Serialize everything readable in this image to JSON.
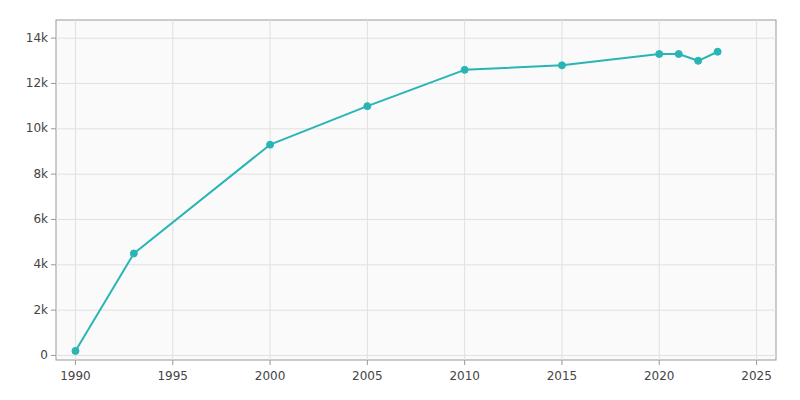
{
  "chart_data": {
    "type": "line",
    "x": [
      1990,
      1993,
      2000,
      2005,
      2010,
      2015,
      2020,
      2021,
      2022,
      2023
    ],
    "values": [
      200,
      4500,
      9300,
      11000,
      12600,
      12800,
      13300,
      13300,
      13000,
      13400
    ],
    "color": "#29b5b5",
    "marker": "circle",
    "xlim": [
      1989,
      2026
    ],
    "ylim": [
      -200,
      14800
    ],
    "xticks": [
      1990,
      1995,
      2000,
      2005,
      2010,
      2015,
      2020,
      2025
    ],
    "yticks": [
      0,
      {
        "value": 2000,
        "label": "2k"
      },
      {
        "value": 4000,
        "label": "4k"
      },
      {
        "value": 6000,
        "label": "6k"
      },
      {
        "value": 8000,
        "label": "8k"
      },
      {
        "value": 10000,
        "label": "10k"
      },
      {
        "value": 12000,
        "label": "12k"
      },
      {
        "value": 14000,
        "label": "14k"
      }
    ],
    "grid": true
  }
}
